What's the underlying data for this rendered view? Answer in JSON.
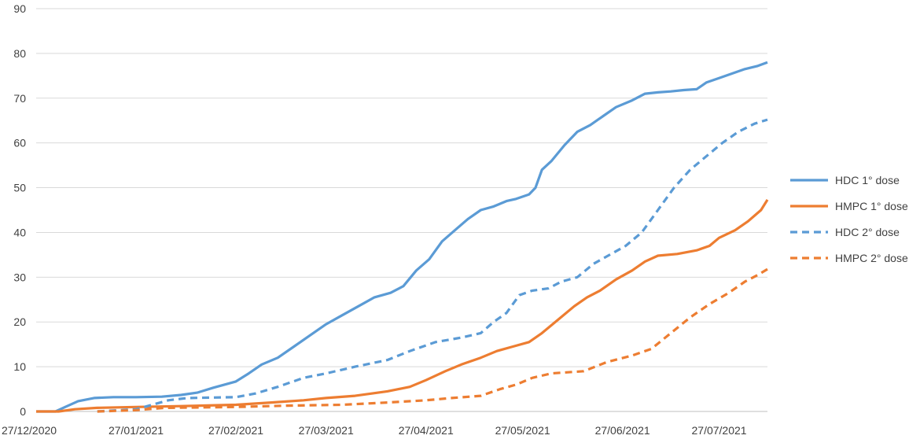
{
  "chart_data": {
    "type": "line",
    "title": "",
    "xlabel": "",
    "ylabel": "",
    "ylim": [
      0,
      90
    ],
    "yticks": [
      0,
      10,
      20,
      30,
      40,
      50,
      60,
      70,
      80,
      90
    ],
    "xlim": [
      "2020-12-27",
      "2021-08-11"
    ],
    "xticks": [
      {
        "date": "2020-12-27",
        "label": "27/12/2020"
      },
      {
        "date": "2021-01-27",
        "label": "27/01/2021"
      },
      {
        "date": "2021-02-27",
        "label": "27/02/2021"
      },
      {
        "date": "2021-03-27",
        "label": "27/03/2021"
      },
      {
        "date": "2021-04-27",
        "label": "27/04/2021"
      },
      {
        "date": "2021-05-27",
        "label": "27/05/2021"
      },
      {
        "date": "2021-06-27",
        "label": "27/06/2021"
      },
      {
        "date": "2021-07-27",
        "label": "27/07/2021"
      }
    ],
    "grid": true,
    "legend_position": "right",
    "series": [
      {
        "name": "HDC 1° dose",
        "color": "#5B9BD5",
        "dashed": false,
        "points": [
          [
            "2020-12-27",
            0
          ],
          [
            "2021-01-02",
            0
          ],
          [
            "2021-01-05",
            1
          ],
          [
            "2021-01-09",
            2.3
          ],
          [
            "2021-01-14",
            3
          ],
          [
            "2021-01-20",
            3.2
          ],
          [
            "2021-01-27",
            3.2
          ],
          [
            "2021-02-04",
            3.3
          ],
          [
            "2021-02-10",
            3.7
          ],
          [
            "2021-02-15",
            4.2
          ],
          [
            "2021-02-20",
            5.3
          ],
          [
            "2021-02-27",
            6.7
          ],
          [
            "2021-03-03",
            8.5
          ],
          [
            "2021-03-07",
            10.5
          ],
          [
            "2021-03-12",
            12
          ],
          [
            "2021-03-17",
            14.5
          ],
          [
            "2021-03-22",
            17
          ],
          [
            "2021-03-27",
            19.5
          ],
          [
            "2021-04-01",
            21.5
          ],
          [
            "2021-04-06",
            23.5
          ],
          [
            "2021-04-11",
            25.5
          ],
          [
            "2021-04-16",
            26.5
          ],
          [
            "2021-04-20",
            28
          ],
          [
            "2021-04-24",
            31.5
          ],
          [
            "2021-04-28",
            34
          ],
          [
            "2021-05-02",
            38
          ],
          [
            "2021-05-06",
            40.5
          ],
          [
            "2021-05-10",
            43
          ],
          [
            "2021-05-14",
            45
          ],
          [
            "2021-05-18",
            45.8
          ],
          [
            "2021-05-22",
            47
          ],
          [
            "2021-05-25",
            47.5
          ],
          [
            "2021-05-29",
            48.5
          ],
          [
            "2021-05-31",
            50
          ],
          [
            "2021-06-02",
            54
          ],
          [
            "2021-06-05",
            56
          ],
          [
            "2021-06-09",
            59.5
          ],
          [
            "2021-06-13",
            62.5
          ],
          [
            "2021-06-17",
            64
          ],
          [
            "2021-06-21",
            66
          ],
          [
            "2021-06-25",
            68
          ],
          [
            "2021-06-30",
            69.5
          ],
          [
            "2021-07-04",
            71
          ],
          [
            "2021-07-08",
            71.3
          ],
          [
            "2021-07-12",
            71.5
          ],
          [
            "2021-07-16",
            71.8
          ],
          [
            "2021-07-20",
            72
          ],
          [
            "2021-07-23",
            73.5
          ],
          [
            "2021-07-27",
            74.5
          ],
          [
            "2021-07-31",
            75.5
          ],
          [
            "2021-08-04",
            76.5
          ],
          [
            "2021-08-08",
            77.2
          ],
          [
            "2021-08-11",
            78
          ]
        ]
      },
      {
        "name": "HMPC 1° dose",
        "color": "#ED7D31",
        "dashed": false,
        "points": [
          [
            "2020-12-27",
            0
          ],
          [
            "2021-01-03",
            0
          ],
          [
            "2021-01-08",
            0.5
          ],
          [
            "2021-01-15",
            0.8
          ],
          [
            "2021-01-27",
            1
          ],
          [
            "2021-02-10",
            1.2
          ],
          [
            "2021-02-27",
            1.5
          ],
          [
            "2021-03-10",
            2
          ],
          [
            "2021-03-20",
            2.5
          ],
          [
            "2021-03-27",
            3
          ],
          [
            "2021-04-05",
            3.5
          ],
          [
            "2021-04-15",
            4.5
          ],
          [
            "2021-04-22",
            5.5
          ],
          [
            "2021-04-27",
            7
          ],
          [
            "2021-05-03",
            9
          ],
          [
            "2021-05-08",
            10.5
          ],
          [
            "2021-05-14",
            12
          ],
          [
            "2021-05-19",
            13.5
          ],
          [
            "2021-05-24",
            14.5
          ],
          [
            "2021-05-29",
            15.5
          ],
          [
            "2021-06-02",
            17.5
          ],
          [
            "2021-06-07",
            20.5
          ],
          [
            "2021-06-12",
            23.5
          ],
          [
            "2021-06-16",
            25.5
          ],
          [
            "2021-06-20",
            27
          ],
          [
            "2021-06-25",
            29.5
          ],
          [
            "2021-06-30",
            31.5
          ],
          [
            "2021-07-04",
            33.5
          ],
          [
            "2021-07-08",
            34.8
          ],
          [
            "2021-07-14",
            35.2
          ],
          [
            "2021-07-20",
            36
          ],
          [
            "2021-07-24",
            37
          ],
          [
            "2021-07-27",
            38.8
          ],
          [
            "2021-08-01",
            40.5
          ],
          [
            "2021-08-05",
            42.5
          ],
          [
            "2021-08-09",
            45
          ],
          [
            "2021-08-11",
            47.3
          ]
        ]
      },
      {
        "name": "HDC 2° dose",
        "color": "#5B9BD5",
        "dashed": true,
        "points": [
          [
            "2021-01-15",
            0
          ],
          [
            "2021-01-27",
            0.5
          ],
          [
            "2021-02-01",
            1.5
          ],
          [
            "2021-02-06",
            2.5
          ],
          [
            "2021-02-12",
            3
          ],
          [
            "2021-02-27",
            3.2
          ],
          [
            "2021-03-05",
            4
          ],
          [
            "2021-03-12",
            5.5
          ],
          [
            "2021-03-20",
            7.5
          ],
          [
            "2021-03-27",
            8.5
          ],
          [
            "2021-04-05",
            10
          ],
          [
            "2021-04-15",
            11.5
          ],
          [
            "2021-04-22",
            13.5
          ],
          [
            "2021-04-30",
            15.5
          ],
          [
            "2021-05-08",
            16.5
          ],
          [
            "2021-05-14",
            17.5
          ],
          [
            "2021-05-18",
            20
          ],
          [
            "2021-05-22",
            22
          ],
          [
            "2021-05-26",
            26
          ],
          [
            "2021-05-30",
            27
          ],
          [
            "2021-06-04",
            27.5
          ],
          [
            "2021-06-08",
            29
          ],
          [
            "2021-06-13",
            30
          ],
          [
            "2021-06-18",
            33
          ],
          [
            "2021-06-23",
            35
          ],
          [
            "2021-06-28",
            37
          ],
          [
            "2021-07-03",
            40
          ],
          [
            "2021-07-08",
            45
          ],
          [
            "2021-07-13",
            50
          ],
          [
            "2021-07-18",
            54
          ],
          [
            "2021-07-23",
            57
          ],
          [
            "2021-07-28",
            60
          ],
          [
            "2021-08-02",
            62.5
          ],
          [
            "2021-08-07",
            64.3
          ],
          [
            "2021-08-11",
            65.2
          ]
        ]
      },
      {
        "name": "HMPC 2° dose",
        "color": "#ED7D31",
        "dashed": true,
        "points": [
          [
            "2021-01-15",
            0
          ],
          [
            "2021-01-27",
            0.3
          ],
          [
            "2021-02-05",
            0.8
          ],
          [
            "2021-02-27",
            1
          ],
          [
            "2021-03-15",
            1.3
          ],
          [
            "2021-04-01",
            1.5
          ],
          [
            "2021-04-15",
            2
          ],
          [
            "2021-04-27",
            2.5
          ],
          [
            "2021-05-05",
            3
          ],
          [
            "2021-05-14",
            3.5
          ],
          [
            "2021-05-20",
            5
          ],
          [
            "2021-05-25",
            6
          ],
          [
            "2021-05-30",
            7.5
          ],
          [
            "2021-06-05",
            8.5
          ],
          [
            "2021-06-15",
            9
          ],
          [
            "2021-06-22",
            11
          ],
          [
            "2021-06-30",
            12.5
          ],
          [
            "2021-07-06",
            14
          ],
          [
            "2021-07-12",
            17.5
          ],
          [
            "2021-07-18",
            21
          ],
          [
            "2021-07-24",
            24
          ],
          [
            "2021-07-30",
            26.5
          ],
          [
            "2021-08-04",
            29
          ],
          [
            "2021-08-08",
            30.5
          ],
          [
            "2021-08-11",
            31.8
          ]
        ]
      }
    ]
  }
}
